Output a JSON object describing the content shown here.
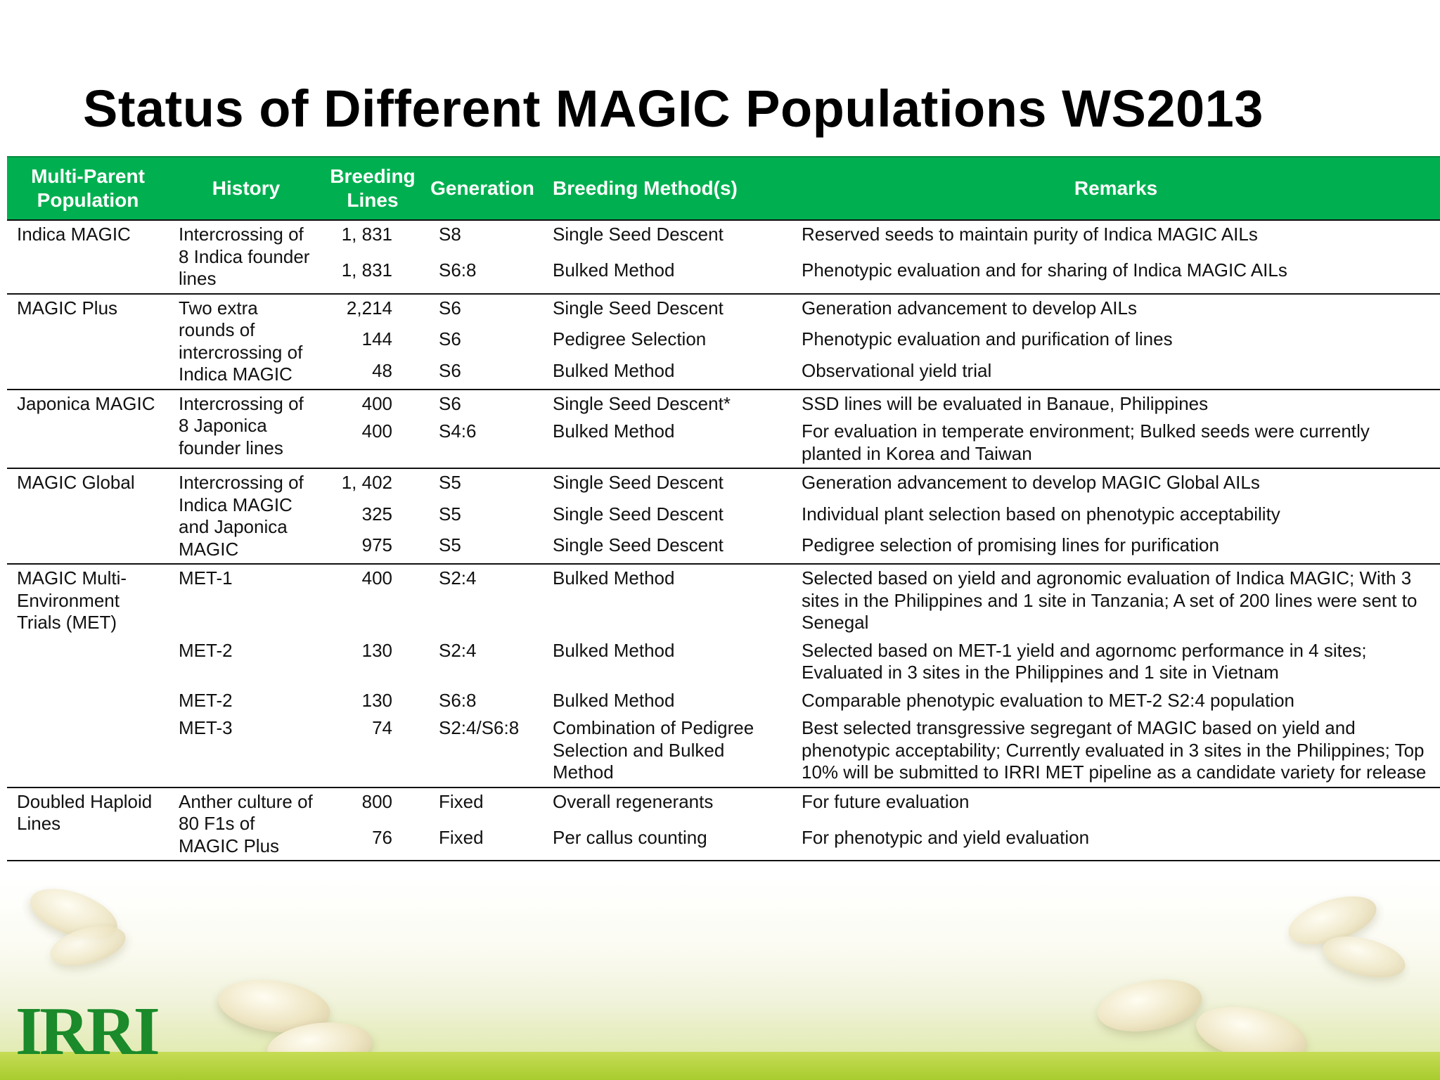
{
  "title": "Status of Different MAGIC Populations WS2013",
  "table": {
    "headers": {
      "population": "Multi-Parent Population",
      "history": "History",
      "lines": "Breeding Lines",
      "generation": "Generation",
      "method": "Breeding Method(s)",
      "remarks": "Remarks"
    },
    "groups": [
      {
        "population": "Indica MAGIC",
        "history": "Intercrossing of 8 Indica founder lines",
        "rows": [
          {
            "lines": "1, 831",
            "generation": "S8",
            "method": "Single Seed Descent",
            "remarks": "Reserved seeds to maintain purity of Indica MAGIC AILs"
          },
          {
            "lines": "1, 831",
            "generation": "S6:8",
            "method": "Bulked Method",
            "remarks": "Phenotypic evaluation and for sharing of Indica MAGIC AILs"
          }
        ]
      },
      {
        "population": "MAGIC Plus",
        "history": "Two extra rounds of intercrossing of Indica MAGIC",
        "rows": [
          {
            "lines": "2,214",
            "generation": "S6",
            "method": "Single Seed Descent",
            "remarks": "Generation advancement to develop AILs"
          },
          {
            "lines": "144",
            "generation": "S6",
            "method": "Pedigree Selection",
            "remarks": "Phenotypic evaluation and purification of lines"
          },
          {
            "lines": "48",
            "generation": "S6",
            "method": "Bulked Method",
            "remarks": "Observational yield trial"
          }
        ]
      },
      {
        "population": "Japonica MAGIC",
        "history": "Intercrossing of 8 Japonica founder lines",
        "rows": [
          {
            "lines": "400",
            "generation": "S6",
            "method": "Single Seed Descent*",
            "remarks": "SSD lines will be evaluated in Banaue, Philippines"
          },
          {
            "lines": "400",
            "generation": "S4:6",
            "method": "Bulked Method",
            "remarks": "For evaluation in temperate environment; Bulked seeds were currently planted in Korea and Taiwan"
          }
        ]
      },
      {
        "population": "MAGIC Global",
        "history": "Intercrossing of Indica MAGIC and Japonica MAGIC",
        "rows": [
          {
            "lines": "1, 402",
            "generation": "S5",
            "method": "Single Seed Descent",
            "remarks": "Generation advancement to develop MAGIC Global AILs"
          },
          {
            "lines": "325",
            "generation": "S5",
            "method": "Single Seed Descent",
            "remarks": "Individual plant selection based on phenotypic acceptability"
          },
          {
            "lines": "975",
            "generation": "S5",
            "method": "Single Seed Descent",
            "remarks": "Pedigree selection of promising lines for purification"
          }
        ]
      },
      {
        "population": "MAGIC Multi-Environment Trials (MET)",
        "history": "",
        "rows": [
          {
            "history": "MET-1",
            "lines": "400",
            "generation": "S2:4",
            "method": "Bulked Method",
            "remarks": "Selected based on yield and agronomic evaluation of Indica MAGIC; With 3 sites in the Philippines and 1 site in Tanzania; A set of 200 lines were sent to Senegal"
          },
          {
            "history": "MET-2",
            "lines": "130",
            "generation": "S2:4",
            "method": "Bulked Method",
            "remarks": "Selected based on MET-1 yield and agornomc performance in 4 sites; Evaluated in 3 sites in the Philippines and 1 site in Vietnam"
          },
          {
            "history": "MET-2",
            "lines": "130",
            "generation": "S6:8",
            "method": "Bulked Method",
            "remarks": "Comparable phenotypic evaluation to MET-2 S2:4 population"
          },
          {
            "history": "MET-3",
            "lines": "74",
            "generation": "S2:4/S6:8",
            "method": "Combination of Pedigree Selection and Bulked Method",
            "remarks": "Best selected transgressive segregant of MAGIC based on yield and phenotypic acceptability; Currently evaluated in 3 sites in the Philippines; Top 10% will be submitted to IRRI MET pipeline as a candidate variety for release"
          }
        ]
      },
      {
        "population": "Doubled Haploid Lines",
        "history": "Anther culture of 80 F1s of MAGIC Plus",
        "rows": [
          {
            "lines": "800",
            "generation": "Fixed",
            "method": "Overall regenerants",
            "remarks": "For future evaluation"
          },
          {
            "lines": "76",
            "generation": "Fixed",
            "method": "Per callus counting",
            "remarks": "For phenotypic and yield evaluation"
          }
        ]
      }
    ]
  },
  "logo": "IRRI"
}
